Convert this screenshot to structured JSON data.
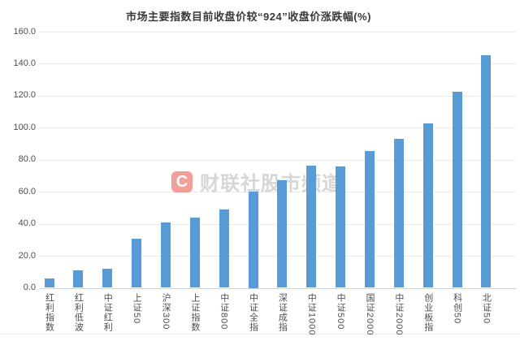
{
  "watermark": {
    "badge_letter": "C",
    "text": "财联社股市频道",
    "badge_color": "#e85046",
    "text_color": "#b4b4b4"
  },
  "chart_data": {
    "type": "bar",
    "title": "市场主要指数目前收盘价较“924”收盘价涨跌幅(%)",
    "categories": [
      "红利指数",
      "红利低波",
      "中证红利",
      "上证50",
      "沪深300",
      "上证指数",
      "中证800",
      "中证全指",
      "深证成指",
      "中证1000",
      "中证500",
      "国证2000",
      "中证2000",
      "创业板指",
      "科创50",
      "北证50"
    ],
    "values": [
      6.0,
      10.8,
      11.9,
      30.6,
      40.9,
      43.7,
      48.9,
      60.0,
      67.1,
      76.2,
      75.6,
      85.6,
      93.2,
      102.9,
      122.3,
      145.2
    ],
    "xlabel": "",
    "ylabel": "",
    "ylim": [
      0,
      160
    ],
    "y_ticks": [
      0,
      20,
      40,
      60,
      80,
      100,
      120,
      140,
      160
    ],
    "y_tick_labels": [
      "0.0",
      "20.0",
      "40.0",
      "60.0",
      "80.0",
      "100.0",
      "120.0",
      "140.0",
      "160.0"
    ],
    "grid": true,
    "legend": "none",
    "bar_color": "#5b9bd5",
    "axis_line_color": "#c9d7ea",
    "gridline_color": "#ebebeb"
  }
}
